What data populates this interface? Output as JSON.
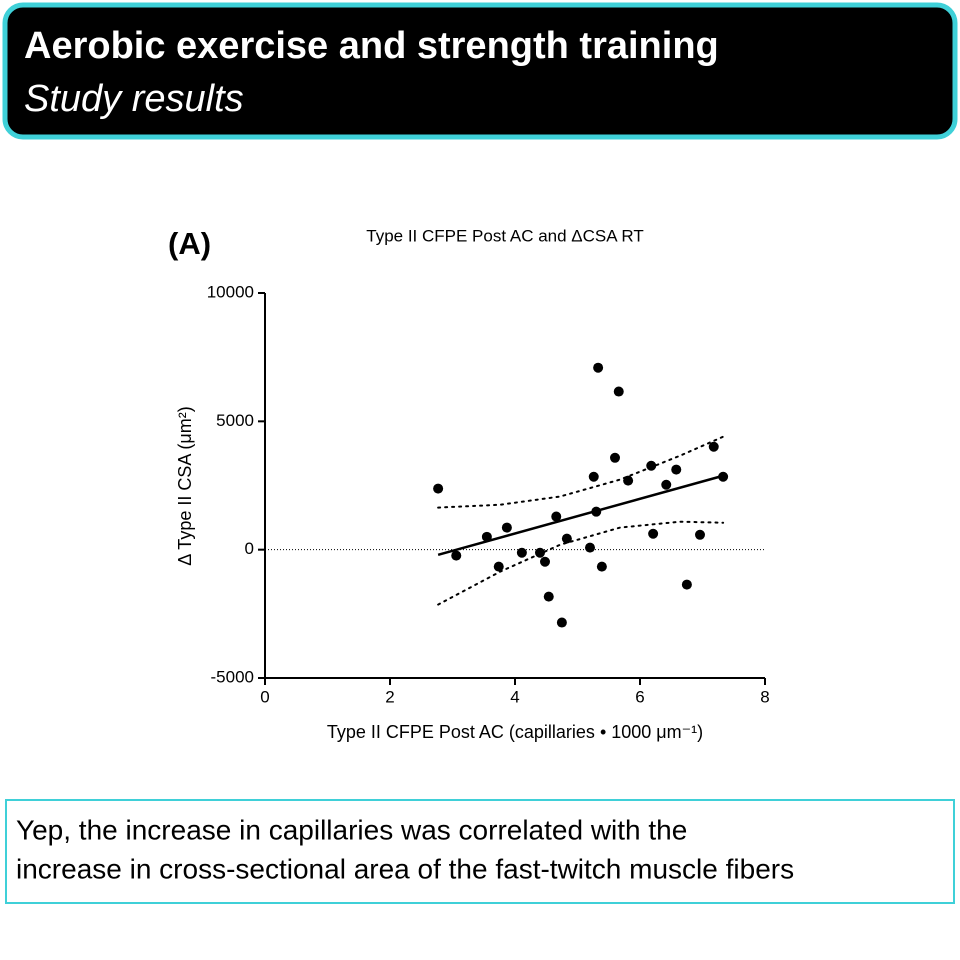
{
  "header": {
    "title": "Aerobic exercise and strength training",
    "subtitle": "Study results"
  },
  "chart_data": {
    "type": "scatter",
    "panel_label": "(A)",
    "title": "Type II CFPE Post AC and ΔCSA RT",
    "x_label": "Type II CFPE Post AC (capillaries • 1000 μm⁻¹)",
    "y_label": "Δ Type II CSA (μm²)",
    "x": [
      2.77,
      3.06,
      3.55,
      3.74,
      3.87,
      4.11,
      4.4,
      4.48,
      4.54,
      4.66,
      4.75,
      4.83,
      5.2,
      5.26,
      5.3,
      5.33,
      5.39,
      5.6,
      5.66,
      5.81,
      6.18,
      6.21,
      6.42,
      6.58,
      6.75,
      6.96,
      7.18,
      7.33
    ],
    "values": [
      2380,
      -230,
      500,
      -660,
      860,
      -120,
      -120,
      -470,
      -1830,
      1290,
      -2840,
      430,
      80,
      2840,
      1480,
      7090,
      -660,
      3580,
      6160,
      2690,
      3270,
      620,
      2530,
      3120,
      -1360,
      580,
      4010,
      2840
    ],
    "color": "#000000",
    "fit_line": {
      "x": [
        2.77,
        7.33
      ],
      "y": [
        -200,
        2880
      ]
    },
    "ci_upper": {
      "x": [
        2.77,
        3.76,
        4.72,
        5.68,
        6.64,
        7.33
      ],
      "y": [
        1640,
        1750,
        2070,
        2730,
        3660,
        4400
      ]
    },
    "ci_lower": {
      "x": [
        2.77,
        3.76,
        4.72,
        5.68,
        6.64,
        7.33
      ],
      "y": [
        -2140,
        -860,
        190,
        860,
        1090,
        1050
      ]
    },
    "reference_y": 0,
    "xlim": [
      0,
      8
    ],
    "xticks": [
      0,
      2,
      4,
      6,
      8
    ],
    "ylim": [
      -5000,
      10000
    ],
    "yticks": [
      -5000,
      0,
      5000,
      10000
    ]
  },
  "caption": {
    "lines": [
      "Yep, the increase in capillaries was correlated with the",
      "increase in cross-sectional area of the fast-twitch muscle fibers"
    ]
  }
}
